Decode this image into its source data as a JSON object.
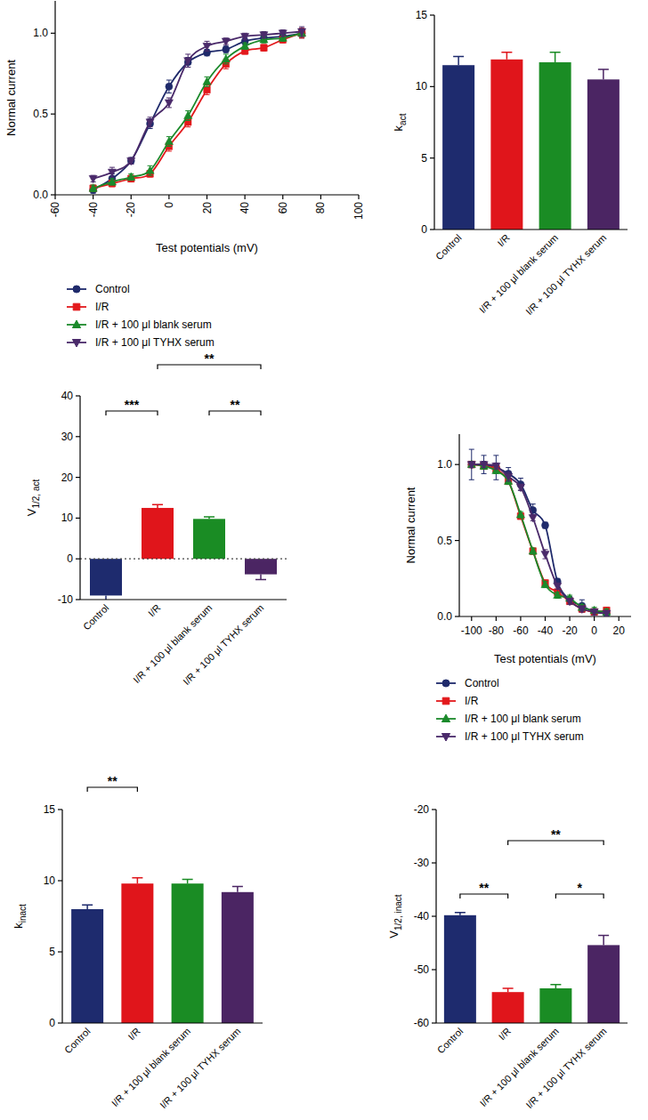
{
  "chart_data": [
    {
      "type": "line",
      "x_label": "Test potentials (mV)",
      "y_label": "Normal current",
      "x": [
        -40,
        -30,
        -20,
        -10,
        0,
        10,
        20,
        30,
        40,
        50,
        60,
        70
      ],
      "xlim": [
        -60,
        100
      ],
      "xticks": [
        -60,
        -40,
        -20,
        0,
        20,
        40,
        60,
        80,
        100
      ],
      "ylim": [
        0,
        1.2
      ],
      "yticks": [
        {
          "value": 0,
          "label": "0.0"
        },
        {
          "value": 0.5,
          "label": "0.5"
        },
        {
          "value": 1,
          "label": "1.0"
        }
      ],
      "legend": "bottom",
      "series": [
        {
          "name": "Control",
          "color": "#1f2a6b",
          "marker": "circle",
          "values": [
            0.03,
            0.1,
            0.21,
            0.44,
            0.67,
            0.82,
            0.88,
            0.9,
            0.95,
            0.97,
            0.98,
            1.0
          ],
          "errors": [
            0.02,
            0.03,
            0.02,
            0.03,
            0.04,
            0.03,
            0.02,
            0.02,
            0.02,
            0.02,
            0.02,
            0.03
          ]
        },
        {
          "name": "I/R",
          "color": "#e3191c",
          "marker": "square",
          "values": [
            0.04,
            0.07,
            0.1,
            0.13,
            0.3,
            0.45,
            0.65,
            0.81,
            0.89,
            0.91,
            0.96,
            1.0
          ],
          "errors": [
            0.02,
            0.02,
            0.02,
            0.02,
            0.03,
            0.03,
            0.03,
            0.03,
            0.02,
            0.02,
            0.02,
            0.03
          ]
        },
        {
          "name": "I/R + 100 μl blank serum",
          "color": "#1b8a2b",
          "marker": "triangle",
          "values": [
            0.04,
            0.08,
            0.11,
            0.15,
            0.33,
            0.49,
            0.7,
            0.84,
            0.92,
            0.96,
            0.97,
            1.0
          ],
          "errors": [
            0.02,
            0.02,
            0.02,
            0.03,
            0.03,
            0.03,
            0.03,
            0.03,
            0.02,
            0.02,
            0.02,
            0.02
          ]
        },
        {
          "name": "I/R + 100 μl TYHX serum",
          "color": "#4a2a6a",
          "marker": "triangle-down",
          "values": [
            0.1,
            0.14,
            0.21,
            0.45,
            0.57,
            0.83,
            0.92,
            0.95,
            0.98,
            0.99,
            1.0,
            1.01
          ],
          "errors": [
            0.02,
            0.03,
            0.02,
            0.03,
            0.03,
            0.04,
            0.03,
            0.02,
            0.02,
            0.02,
            0.02,
            0.03
          ]
        }
      ]
    },
    {
      "type": "bar",
      "y_label": {
        "base": "k",
        "subscript": "act"
      },
      "categories": [
        "Control",
        "I/R",
        "I/R + 100 μl blank serum",
        "I/R + 100 μl TYHX serum"
      ],
      "values": [
        11.5,
        11.9,
        11.7,
        10.5
      ],
      "errors": [
        0.6,
        0.5,
        0.7,
        0.7
      ],
      "colors": [
        "#1e2b6e",
        "#e0151b",
        "#1a8c24",
        "#4b2563"
      ],
      "ylim": [
        0,
        15
      ],
      "yticks": [
        0,
        5,
        10,
        15
      ],
      "annotations": []
    },
    {
      "type": "bar",
      "y_label": {
        "base": "V",
        "subscript": "1/2, act"
      },
      "categories": [
        "Control",
        "I/R",
        "I/R + 100 μl blank serum",
        "I/R + 100 μl TYHX serum"
      ],
      "values": [
        -9,
        12.5,
        9.8,
        -3.8
      ],
      "errors": [
        1.2,
        0.8,
        0.5,
        1.3
      ],
      "colors": [
        "#1e2b6e",
        "#e0151b",
        "#1a8c24",
        "#4b2563"
      ],
      "ylim": [
        -10,
        40
      ],
      "yticks": [
        -10,
        0,
        10,
        20,
        30,
        40
      ],
      "hline": 0,
      "annotations": [
        {
          "between": [
            "Control",
            "I/R"
          ],
          "label": "***"
        },
        {
          "between": [
            "I/R",
            "I/R + 100 μl TYHX serum"
          ],
          "label": "**"
        },
        {
          "between": [
            "I/R + 100 μl blank serum",
            "I/R + 100 μl TYHX serum"
          ],
          "label": "**"
        }
      ]
    },
    {
      "type": "line",
      "x_label": "Test potentials (mV)",
      "y_label": "Normal current",
      "x": [
        -100,
        -90,
        -80,
        -70,
        -60,
        -50,
        -40,
        -30,
        -20,
        -10,
        0,
        10
      ],
      "xlim": [
        -110,
        30
      ],
      "xticks": [
        -100,
        -80,
        -60,
        -40,
        -20,
        0,
        20
      ],
      "ylim": [
        0,
        1.2
      ],
      "yticks": [
        {
          "value": 0,
          "label": "0.0"
        },
        {
          "value": 0.5,
          "label": "0.5"
        },
        {
          "value": 1,
          "label": "1.0"
        }
      ],
      "legend": "bottom",
      "series": [
        {
          "name": "Control",
          "color": "#1f2a6b",
          "marker": "circle",
          "values": [
            1.0,
            1.0,
            0.98,
            0.94,
            0.87,
            0.7,
            0.6,
            0.23,
            0.11,
            0.07,
            0.03,
            0.02
          ],
          "errors": [
            0.1,
            0.06,
            0.08,
            0.04,
            0.04,
            0.04,
            0.02,
            0.02,
            0.02,
            0.04,
            0.02,
            0.02
          ]
        },
        {
          "name": "I/R",
          "color": "#e3191c",
          "marker": "square",
          "values": [
            1.0,
            0.99,
            0.97,
            0.89,
            0.66,
            0.43,
            0.22,
            0.16,
            0.1,
            0.05,
            0.03,
            0.04
          ],
          "errors": [
            0.02,
            0.02,
            0.02,
            0.02,
            0.02,
            0.02,
            0.02,
            0.02,
            0.02,
            0.02,
            0.02,
            0.02
          ]
        },
        {
          "name": "I/R + 100 μl blank serum",
          "color": "#1b8a2b",
          "marker": "triangle",
          "values": [
            1.0,
            0.99,
            0.96,
            0.89,
            0.67,
            0.43,
            0.21,
            0.14,
            0.12,
            0.06,
            0.04,
            0.03
          ],
          "errors": [
            0.02,
            0.02,
            0.02,
            0.02,
            0.02,
            0.02,
            0.02,
            0.02,
            0.02,
            0.02,
            0.02,
            0.02
          ]
        },
        {
          "name": "I/R + 100 μl TYHX serum",
          "color": "#4a2a6a",
          "marker": "triangle-down",
          "values": [
            1.0,
            1.0,
            0.99,
            0.92,
            0.85,
            0.65,
            0.41,
            0.2,
            0.1,
            0.05,
            0.03,
            0.02
          ],
          "errors": [
            0.02,
            0.02,
            0.02,
            0.03,
            0.02,
            0.02,
            0.03,
            0.02,
            0.02,
            0.02,
            0.02,
            0.02
          ]
        }
      ]
    },
    {
      "type": "bar",
      "y_label": {
        "base": "k",
        "subscript": "inact"
      },
      "categories": [
        "Control",
        "I/R",
        "I/R + 100 μl blank serum",
        "I/R + 100 μl TYHX serum"
      ],
      "values": [
        8.0,
        9.8,
        9.8,
        9.2
      ],
      "errors": [
        0.3,
        0.4,
        0.3,
        0.4
      ],
      "colors": [
        "#1e2b6e",
        "#e0151b",
        "#1a8c24",
        "#4b2563"
      ],
      "ylim": [
        0,
        15
      ],
      "yticks": [
        0,
        5,
        10,
        15
      ],
      "annotations": [
        {
          "between": [
            "Control",
            "I/R"
          ],
          "label": "**"
        }
      ]
    },
    {
      "type": "bar",
      "y_label": {
        "base": "V",
        "subscript": "1/2, inact"
      },
      "categories": [
        "Control",
        "I/R",
        "I/R + 100 μl blank serum",
        "I/R + 100 μl TYHX serum"
      ],
      "values": [
        -39.8,
        -54.2,
        -53.5,
        -45.4
      ],
      "errors": [
        0.5,
        0.7,
        0.7,
        1.8
      ],
      "colors": [
        "#1e2b6e",
        "#e0151b",
        "#1a8c24",
        "#4b2563"
      ],
      "ylim": [
        -60,
        -20
      ],
      "yticks": [
        -60,
        -50,
        -40,
        -30,
        -20
      ],
      "annotations": [
        {
          "between": [
            "Control",
            "I/R"
          ],
          "label": "**"
        },
        {
          "between": [
            "I/R",
            "I/R + 100 μl TYHX serum"
          ],
          "label": "**"
        },
        {
          "between": [
            "I/R + 100 μl blank serum",
            "I/R + 100 μl TYHX serum"
          ],
          "label": "*"
        }
      ]
    }
  ]
}
